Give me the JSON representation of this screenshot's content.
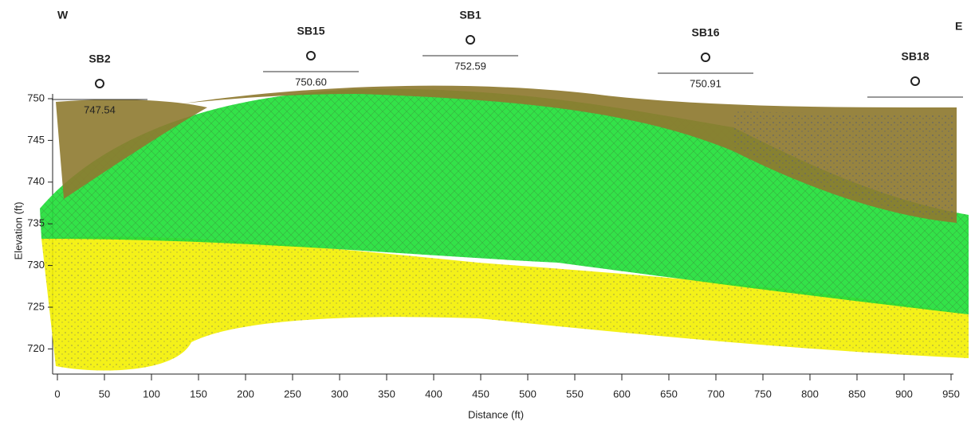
{
  "header": {
    "west": "W",
    "east": "E"
  },
  "boreholes": [
    {
      "label": "SB2",
      "elevation": "747.54"
    },
    {
      "label": "SB15",
      "elevation": "750.60"
    },
    {
      "label": "SB1",
      "elevation": "752.59"
    },
    {
      "label": "SB16",
      "elevation": "750.91"
    },
    {
      "label": "SB18"
    }
  ],
  "axes": {
    "y_label": "Elevation (ft)",
    "x_label": "Distance (ft)",
    "y_ticks": [
      "750",
      "745",
      "740",
      "735",
      "730",
      "725",
      "720"
    ],
    "x_ticks": [
      "0",
      "50",
      "100",
      "150",
      "200",
      "250",
      "300",
      "350",
      "400",
      "450",
      "500",
      "550",
      "600",
      "650",
      "700",
      "750",
      "800",
      "850",
      "900",
      "950"
    ]
  }
}
